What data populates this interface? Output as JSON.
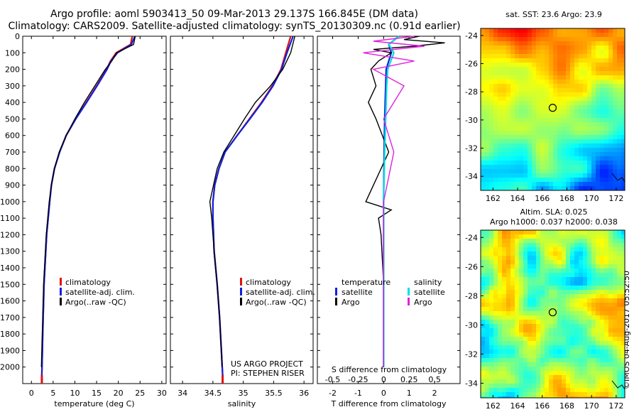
{
  "title_line1": "Argo profile: aoml 5903413_50 09-Mar-2013 29.137S 166.845E (DM data)",
  "title_line2": "Climatology: CARS2009. Satellite-adjusted climatology: synTS_20130309.nc (0.91d earlier)",
  "sst_title": "sat. SST: 23.6 Argo: 23.9",
  "sla_title1": "Altim. SLA: 0.025",
  "sla_title2": "Argo h1000: 0.037 h2000: 0.038",
  "credit": "©IMOS 04-Aug-2017 05:52:50",
  "project_line1": "US ARGO PROJECT",
  "project_line2": "PI: STEPHEN RISER",
  "colors": {
    "climatology": "#dd1111",
    "satellite": "#1020dd",
    "argo": "#000000",
    "argo_salinity": "#e020e0",
    "satellite_salinity": "#00e0e0"
  },
  "chart_data": [
    {
      "type": "line",
      "xlabel": "temperature (deg C)",
      "ylabel": "",
      "xlim": [
        -2,
        31
      ],
      "ylim": [
        2100,
        0
      ],
      "xticks": [
        0,
        5,
        10,
        15,
        20,
        25,
        30
      ],
      "yticks": [
        0,
        100,
        200,
        300,
        400,
        500,
        600,
        700,
        800,
        900,
        1000,
        1100,
        1200,
        1300,
        1400,
        1500,
        1600,
        1700,
        1800,
        1900,
        2000
      ],
      "legend": [
        "climatology",
        "satellite-adj. clim.",
        "Argo(..raw -QC)"
      ],
      "series": [
        {
          "name": "climatology",
          "depth": [
            0,
            50,
            100,
            150,
            200,
            300,
            400,
            500,
            600,
            700,
            800,
            900,
            1000,
            1200,
            1500,
            1800,
            2050
          ],
          "values": [
            23.2,
            22.8,
            19.5,
            18.2,
            17.3,
            15.0,
            12.6,
            10.2,
            8.0,
            6.5,
            5.3,
            4.6,
            4.2,
            3.5,
            2.9,
            2.6,
            2.4
          ]
        },
        {
          "name": "satellite-adj. clim.",
          "depth": [
            0,
            50,
            100,
            150,
            200,
            300,
            400,
            500,
            600,
            700,
            800,
            900,
            1000,
            1200,
            1500,
            1800,
            2050
          ],
          "values": [
            23.8,
            23.0,
            19.8,
            18.3,
            17.4,
            15.1,
            12.7,
            10.2,
            8.0,
            6.5,
            5.3,
            4.6,
            4.2,
            3.5,
            2.9,
            2.6,
            2.4
          ]
        },
        {
          "name": "Argo(..raw -QC)",
          "depth": [
            0,
            50,
            100,
            150,
            200,
            300,
            400,
            500,
            600,
            700,
            800,
            900,
            1000,
            1200,
            1500,
            1800,
            2000
          ],
          "values": [
            23.9,
            23.5,
            19.6,
            18.5,
            17.0,
            14.6,
            12.2,
            10.0,
            8.0,
            6.4,
            5.3,
            4.6,
            4.1,
            3.4,
            2.8,
            2.5,
            2.3
          ]
        }
      ]
    },
    {
      "type": "line",
      "xlabel": "salinity",
      "ylabel": "",
      "xlim": [
        33.8,
        36.15
      ],
      "ylim": [
        2100,
        0
      ],
      "xticks": [
        34,
        34.5,
        35,
        35.5,
        36
      ],
      "legend": [
        "climatology",
        "satellite-adj. clim.",
        "Argo(..raw -QC)"
      ],
      "series": [
        {
          "name": "climatology",
          "depth": [
            0,
            100,
            200,
            300,
            400,
            500,
            600,
            700,
            800,
            900,
            1000,
            1100,
            1300,
            1500,
            1700,
            1900,
            2050
          ],
          "values": [
            35.78,
            35.7,
            35.62,
            35.48,
            35.3,
            35.1,
            34.9,
            34.7,
            34.6,
            34.53,
            34.5,
            34.5,
            34.52,
            34.57,
            34.61,
            34.64,
            34.66
          ]
        },
        {
          "name": "satellite-adj. clim.",
          "depth": [
            0,
            100,
            200,
            300,
            400,
            500,
            600,
            700,
            800,
            900,
            1000,
            1100,
            1300,
            1500,
            1700,
            1900,
            2050
          ],
          "values": [
            35.82,
            35.72,
            35.63,
            35.49,
            35.31,
            35.11,
            34.9,
            34.7,
            34.6,
            34.53,
            34.5,
            34.5,
            34.52,
            34.57,
            34.61,
            34.64,
            34.66
          ]
        },
        {
          "name": "Argo(..raw -QC)",
          "depth": [
            0,
            100,
            200,
            300,
            400,
            500,
            600,
            700,
            800,
            900,
            1000,
            1100,
            1300,
            1500,
            1700,
            1900,
            2000
          ],
          "values": [
            35.85,
            35.78,
            35.65,
            35.45,
            35.2,
            35.02,
            34.85,
            34.68,
            34.57,
            34.51,
            34.45,
            34.48,
            34.52,
            34.57,
            34.61,
            34.64,
            34.65
          ]
        }
      ]
    },
    {
      "type": "line",
      "xlabel": "T difference from climatology",
      "x2label": "S difference from climatology",
      "xlim": [
        -2.6,
        3.0
      ],
      "ylim": [
        2100,
        0
      ],
      "xticks": [
        -2,
        -1,
        0,
        1,
        2
      ],
      "x2ticks": [
        -0.5,
        -0.25,
        0,
        0.25,
        0.5
      ],
      "legend_left": {
        "heading": "temperature",
        "items": [
          "satellite",
          "Argo"
        ]
      },
      "legend_right": {
        "heading": "salinity",
        "items": [
          "satellite",
          "Argo"
        ]
      },
      "series": [
        {
          "name": "satellite",
          "group": "temperature",
          "depth": [
            0,
            50,
            100,
            200,
            300,
            500,
            700,
            1000,
            1500,
            2000
          ],
          "values": [
            0.6,
            0.2,
            0.3,
            0.1,
            0.08,
            0.04,
            0.02,
            0.0,
            0.0,
            0.0
          ]
        },
        {
          "name": "Argo",
          "group": "temperature",
          "depth": [
            0,
            20,
            40,
            60,
            80,
            100,
            150,
            200,
            300,
            400,
            500,
            700,
            900,
            1000,
            1050,
            1100,
            1200,
            1500,
            2000
          ],
          "values": [
            1.4,
            0.8,
            2.4,
            1.2,
            -0.4,
            0.3,
            -0.2,
            -0.5,
            -0.3,
            -0.6,
            -0.3,
            0.2,
            -0.4,
            -0.7,
            0.3,
            -0.2,
            -0.1,
            0.0,
            0.0
          ]
        },
        {
          "name": "satellite",
          "group": "salinity",
          "depth": [
            0,
            50,
            100,
            200,
            300,
            500,
            700,
            1000,
            1500,
            2000
          ],
          "values": [
            0.15,
            0.05,
            0.1,
            0.04,
            0.03,
            0.02,
            0.01,
            0.0,
            0.0,
            0.0
          ]
        },
        {
          "name": "Argo",
          "group": "salinity",
          "depth": [
            0,
            30,
            60,
            100,
            150,
            200,
            300,
            400,
            500,
            700,
            1000,
            1500,
            2000
          ],
          "values": [
            0.3,
            -0.1,
            0.4,
            -0.2,
            0.3,
            -0.1,
            0.2,
            0.1,
            0.0,
            0.1,
            0.0,
            0.0,
            0.0
          ]
        }
      ]
    },
    {
      "type": "heatmap",
      "title": "sat. SST: 23.6 Argo: 23.9",
      "xlim": [
        161,
        172.7
      ],
      "ylim": [
        -35,
        -23.5
      ],
      "xticks": [
        162,
        164,
        166,
        168,
        170,
        172
      ],
      "yticks": [
        -24,
        -26,
        -28,
        -30,
        -32,
        -34
      ],
      "marker": {
        "lon": 166.845,
        "lat": -29.137
      }
    },
    {
      "type": "heatmap",
      "title": "Altim. SLA: 0.025",
      "xlim": [
        161,
        172.7
      ],
      "ylim": [
        -35,
        -23.5
      ],
      "xticks": [
        162,
        164,
        166,
        168,
        170,
        172
      ],
      "yticks": [
        -24,
        -26,
        -28,
        -30,
        -32,
        -34
      ],
      "marker": {
        "lon": 166.845,
        "lat": -29.137
      }
    }
  ]
}
